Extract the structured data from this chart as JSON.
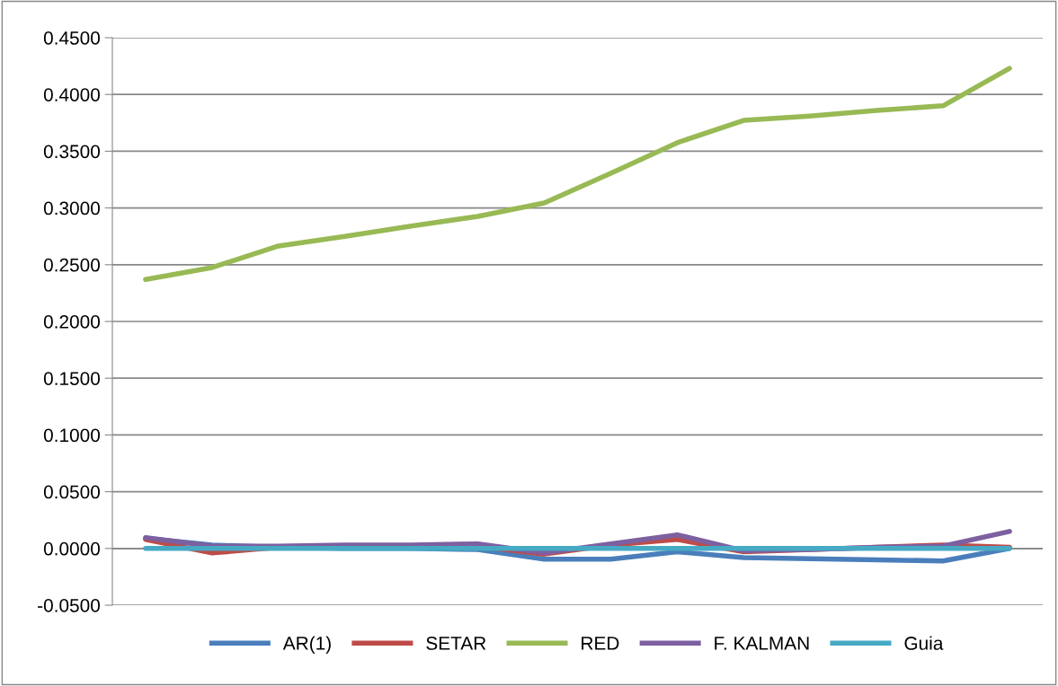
{
  "chart_data": {
    "type": "line",
    "categories": [
      null,
      null,
      null,
      null,
      null,
      null,
      null,
      null,
      null,
      null,
      null,
      null,
      null,
      null
    ],
    "series": [
      {
        "name": "AR(1)",
        "color": "#4a7ebb",
        "values": [
          0.009,
          0.003,
          0.001,
          0.0,
          0.0,
          -0.001,
          -0.0095,
          -0.0095,
          -0.003,
          -0.008,
          -0.009,
          -0.01,
          -0.011,
          0.0
        ]
      },
      {
        "name": "SETAR",
        "color": "#be4b48",
        "values": [
          0.008,
          -0.004,
          0.001,
          0.002,
          0.002,
          0.002,
          -0.005,
          0.003,
          0.008,
          -0.003,
          -0.001,
          0.001,
          0.003,
          0.001
        ]
      },
      {
        "name": "RED",
        "color": "#98b954",
        "values": [
          0.237,
          0.2475,
          0.2665,
          0.275,
          0.284,
          0.2926,
          0.3045,
          0.3306,
          0.3575,
          0.3772,
          0.381,
          0.386,
          0.39,
          0.423
        ]
      },
      {
        "name": "F. KALMAN",
        "color": "#7d60a0",
        "values": [
          0.0095,
          0.002,
          0.002,
          0.003,
          0.003,
          0.004,
          -0.004,
          0.004,
          0.012,
          -0.002,
          -0.001,
          0.001,
          0.002,
          0.015
        ]
      },
      {
        "name": "Guia",
        "color": "#46aac5",
        "values": [
          0,
          0,
          0,
          0,
          0,
          0,
          0,
          0,
          0,
          0,
          0,
          0,
          0,
          0
        ]
      }
    ],
    "ylim": [
      -0.05,
      0.45
    ],
    "yticks": [
      {
        "value": -0.05,
        "label": "-0.0500"
      },
      {
        "value": 0,
        "label": "0.0000"
      },
      {
        "value": 0.05,
        "label": "0.0500"
      },
      {
        "value": 0.1,
        "label": "0.1000"
      },
      {
        "value": 0.15,
        "label": "0.1500"
      },
      {
        "value": 0.2,
        "label": "0.2000"
      },
      {
        "value": 0.25,
        "label": "0.2500"
      },
      {
        "value": 0.3,
        "label": "0.3000"
      },
      {
        "value": 0.35,
        "label": "0.3500"
      },
      {
        "value": 0.4,
        "label": "0.4000"
      },
      {
        "value": 0.45,
        "label": "0.4500"
      }
    ],
    "grid": "y",
    "legend": "bottom",
    "tick_labels": "y",
    "marker": "none",
    "line_style": "solid"
  }
}
